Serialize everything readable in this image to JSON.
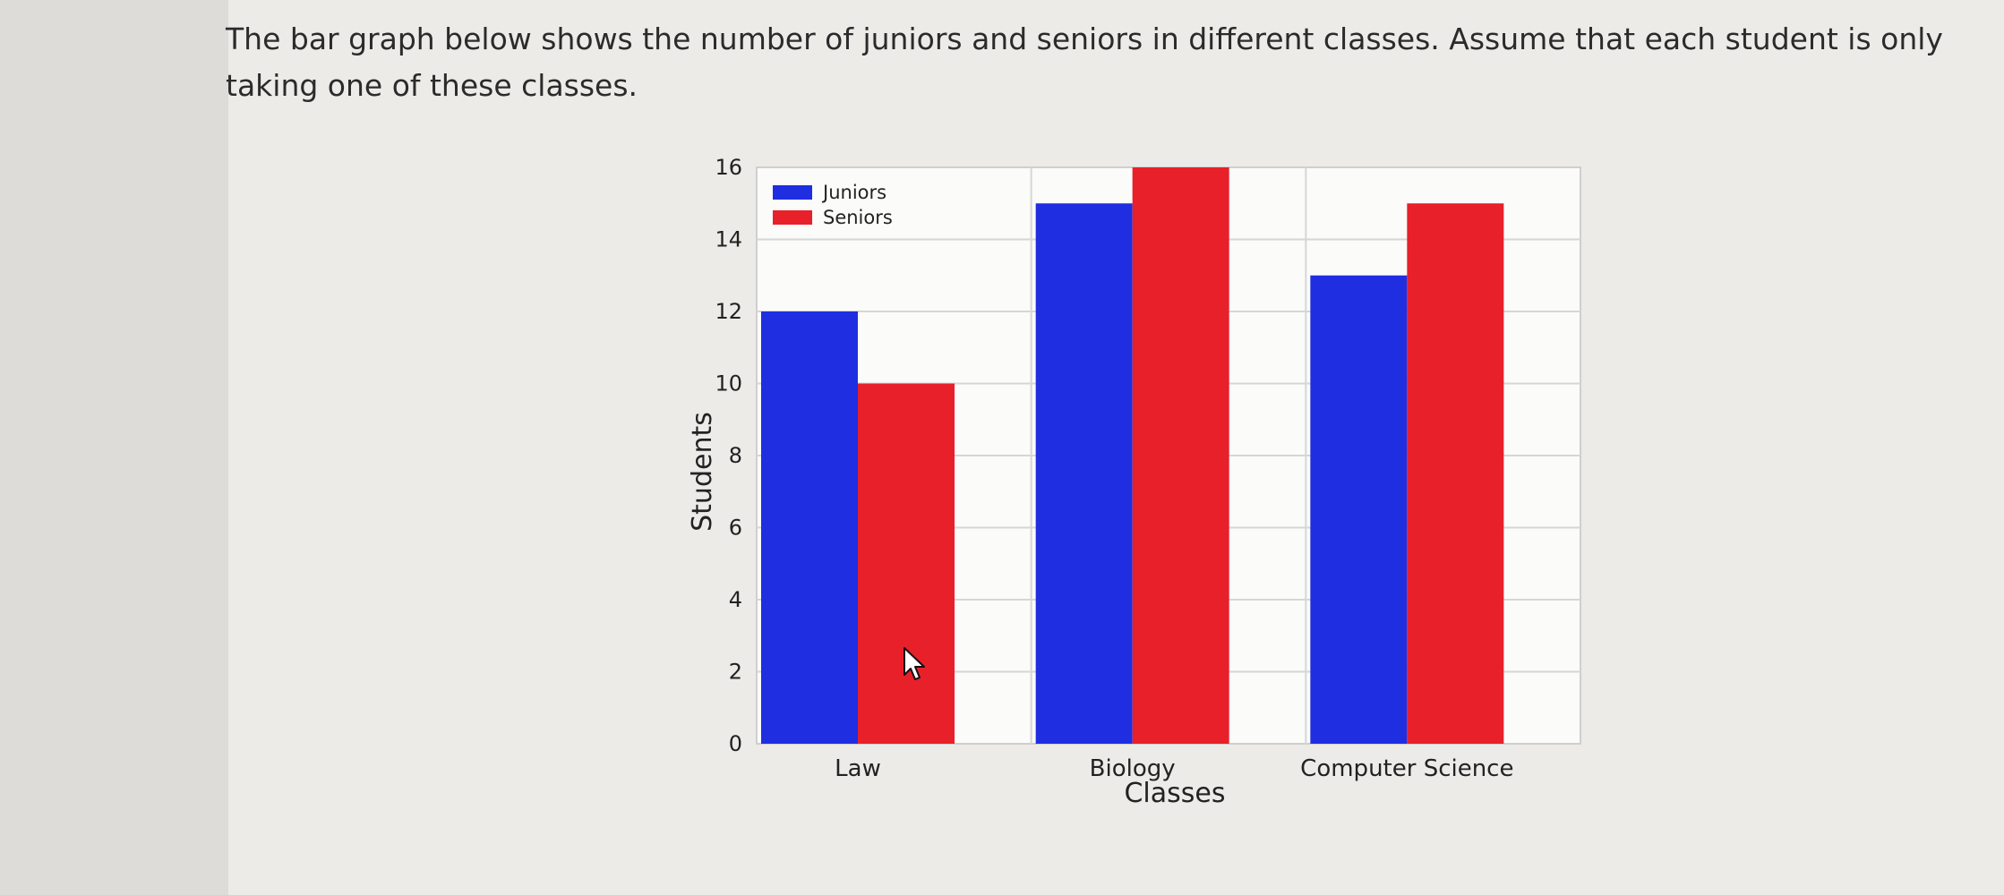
{
  "question": {
    "text": "The bar graph below shows the number of juniors and seniors in different classes. Assume that each student is only taking one of these classes."
  },
  "colors": {
    "juniors": "#1f2ee0",
    "seniors": "#e8202a",
    "grid": "#d6d6d6",
    "plot_bg": "#fbfbfa"
  },
  "chart_data": {
    "type": "bar",
    "categories": [
      "Law",
      "Biology",
      "Computer Science"
    ],
    "series": [
      {
        "name": "Juniors",
        "values": [
          12,
          15,
          13
        ]
      },
      {
        "name": "Seniors",
        "values": [
          10,
          16,
          15
        ]
      }
    ],
    "title": "",
    "xlabel": "Classes",
    "ylabel": "Students",
    "ylim": [
      0,
      16
    ],
    "yticks": [
      0,
      2,
      4,
      6,
      8,
      10,
      12,
      14,
      16
    ],
    "grid": true,
    "legend": "top-left"
  }
}
